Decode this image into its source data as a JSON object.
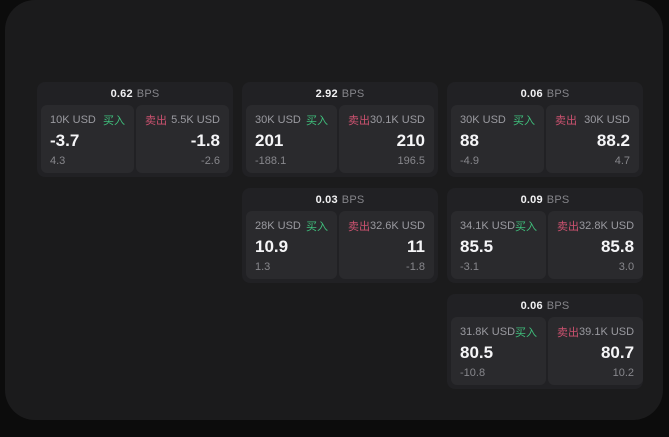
{
  "colors": {
    "background": "#0c0c0c",
    "surface": "#1b1b1c",
    "card": "#212124",
    "tile": "#2a2a2d",
    "buy_accent": "#3fbf7c",
    "sell_accent": "#cd5270",
    "primary_text": "#f5f5f7",
    "muted_text": "#9a9aa0"
  },
  "cards": [
    {
      "bps": "0.62",
      "unit": "BPS",
      "buy": {
        "notional": "10K USD",
        "label": "买入",
        "price": "-3.7",
        "secondary": "4.3"
      },
      "sell": {
        "label": "卖出",
        "notional": "5.5K USD",
        "price": "-1.8",
        "secondary": "-2.6"
      }
    },
    {
      "bps": "2.92",
      "unit": "BPS",
      "buy": {
        "notional": "30K USD",
        "label": "买入",
        "price": "201",
        "secondary": "-188.1"
      },
      "sell": {
        "label": "卖出",
        "notional": "30.1K USD",
        "price": "210",
        "secondary": "196.5"
      }
    },
    {
      "bps": "0.06",
      "unit": "BPS",
      "buy": {
        "notional": "30K USD",
        "label": "买入",
        "price": "88",
        "secondary": "-4.9"
      },
      "sell": {
        "label": "卖出",
        "notional": "30K USD",
        "price": "88.2",
        "secondary": "4.7"
      }
    },
    {
      "bps": "0.03",
      "unit": "BPS",
      "buy": {
        "notional": "28K USD",
        "label": "买入",
        "price": "10.9",
        "secondary": "1.3"
      },
      "sell": {
        "label": "卖出",
        "notional": "32.6K USD",
        "price": "11",
        "secondary": "-1.8"
      }
    },
    {
      "bps": "0.09",
      "unit": "BPS",
      "buy": {
        "notional": "34.1K USD",
        "label": "买入",
        "price": "85.5",
        "secondary": "-3.1"
      },
      "sell": {
        "label": "卖出",
        "notional": "32.8K USD",
        "price": "85.8",
        "secondary": "3.0"
      }
    },
    {
      "bps": "0.06",
      "unit": "BPS",
      "buy": {
        "notional": "31.8K USD",
        "label": "买入",
        "price": "80.5",
        "secondary": "-10.8"
      },
      "sell": {
        "label": "卖出",
        "notional": "39.1K USD",
        "price": "80.7",
        "secondary": "10.2"
      }
    }
  ]
}
